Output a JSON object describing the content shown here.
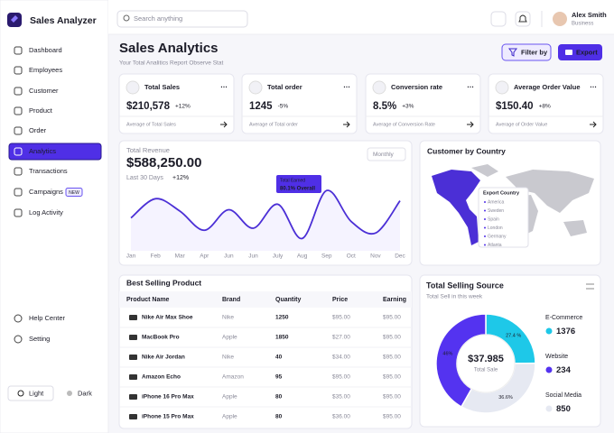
{
  "app": {
    "name": "Sales Analyzer"
  },
  "sidebar": {
    "items": [
      "Dashboard",
      "Employees",
      "Customer",
      "Product",
      "Order",
      "Analytics",
      "Transactions",
      "Campaigns",
      "Log Activity"
    ],
    "active": "Analytics",
    "badge": "NEW",
    "footer_items": [
      "Help Center",
      "Setting"
    ],
    "themes": [
      "Light",
      "Dark"
    ]
  },
  "header": {
    "search_placeholder": "Search anything",
    "user_name": "Alex Smith",
    "user_role": "Business"
  },
  "page": {
    "title": "Sales Analytics",
    "subtitle": "Your Total Analitics Report Observe Stat",
    "buttons": [
      "Filter by",
      "Export"
    ]
  },
  "kpis": [
    {
      "title": "Total Sales",
      "value": "$210,578",
      "change": "+12%",
      "note": "Average of Total Sales"
    },
    {
      "title": "Total order",
      "value": "1245",
      "change": "-5%",
      "note": "Average of Total order"
    },
    {
      "title": "Conversion rate",
      "value": "8.5%",
      "change": "+3%",
      "note": "Average of Conversion Rate"
    },
    {
      "title": "Average Order Value",
      "value": "$150.40",
      "change": "+8%",
      "note": "Average of Order Value"
    }
  ],
  "chart_data": {
    "type": "line",
    "title": "Total Revenue",
    "total": "$588,250.00",
    "period": "Last 30 Days",
    "change": "+12%",
    "range_select": "Monthly",
    "categories": [
      "Jan",
      "Feb",
      "Mar",
      "Apr",
      "Jun",
      "Jun",
      "July",
      "Aug",
      "Sep",
      "Oct",
      "Nov",
      "Dec"
    ],
    "values": [
      40,
      68,
      50,
      22,
      52,
      25,
      60,
      10,
      80,
      35,
      18,
      65
    ],
    "ylim": [
      0,
      100
    ],
    "color": "#4b2fd6",
    "tooltip": {
      "title": "Total Earned",
      "text": "80.1% Overall"
    }
  },
  "country": {
    "title": "Customer by Country",
    "tooltip_title": "Export Country",
    "list": [
      "America",
      "Sweden",
      "Spain",
      "London",
      "Germany",
      "Atlanta"
    ]
  },
  "table": {
    "title": "Best Selling Product",
    "columns": [
      "Product Name",
      "Brand",
      "Quantity",
      "Price",
      "Earning"
    ],
    "rows": [
      [
        "Nike Air Max Shoe",
        "Nike",
        "1250",
        "$95.00",
        "$95.00"
      ],
      [
        "MacBook Pro",
        "Apple",
        "1850",
        "$27.00",
        "$95.00"
      ],
      [
        "Nike Air Jordan",
        "Nike",
        "40",
        "$34.00",
        "$95.00"
      ],
      [
        "Amazon Echo",
        "Amazon",
        "95",
        "$95.00",
        "$95.00"
      ],
      [
        "iPhone 16 Pro Max",
        "Apple",
        "80",
        "$35.00",
        "$95.00"
      ],
      [
        "iPhone 15 Pro Max",
        "Apple",
        "80",
        "$36.00",
        "$95.00"
      ]
    ]
  },
  "selling_source": {
    "title": "Total Selling Source",
    "subtitle": "Total Sell in this week",
    "center_value": "$37.985",
    "center_label": "Total Sale",
    "segments": [
      {
        "name": "E-Commerce",
        "count": "1376",
        "share": 27.4,
        "share_label": "27.4 %",
        "color": "#1ec8e8"
      },
      {
        "name": "Social Media",
        "count": "850",
        "share": 36.6,
        "share_label": "36.6%",
        "color": "#e6e9f2"
      },
      {
        "name": "Website",
        "count": "234",
        "share": 46,
        "share_label": "46%",
        "color": "#5433f0"
      }
    ]
  }
}
